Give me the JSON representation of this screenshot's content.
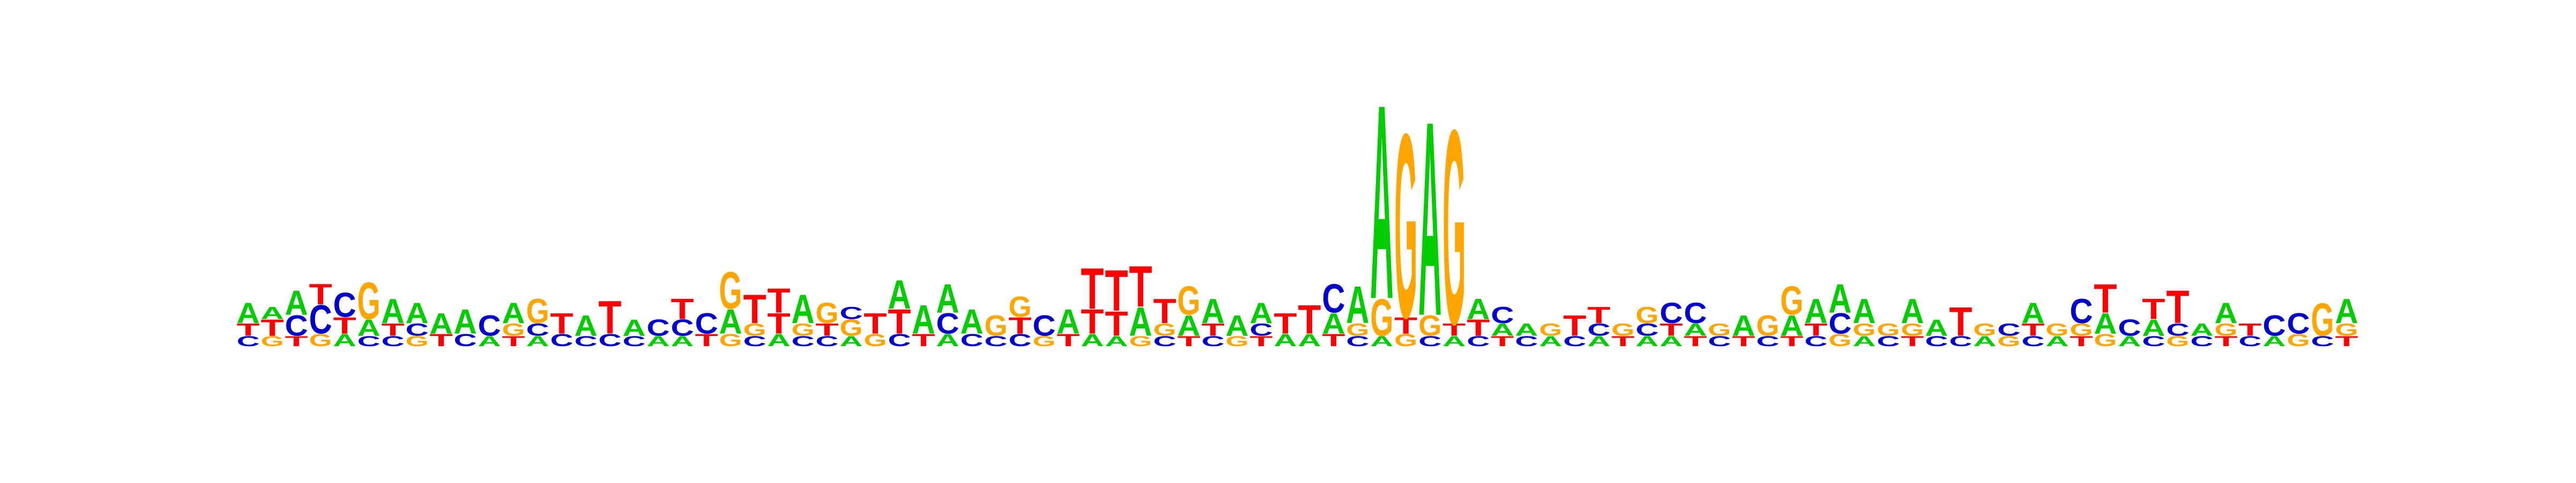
{
  "colors": {
    "A": "#00cc00",
    "C": "#0000cc",
    "G": "#ffa500",
    "T": "#ff0000"
  },
  "logo_columns": [
    [
      [
        "C",
        0.05
      ],
      [
        "T",
        0.06
      ],
      [
        "A",
        0.1
      ]
    ],
    [
      [
        "G",
        0.05
      ],
      [
        "T",
        0.08
      ],
      [
        "A",
        0.06
      ]
    ],
    [
      [
        "T",
        0.05
      ],
      [
        "C",
        0.1
      ],
      [
        "A",
        0.12
      ]
    ],
    [
      [
        "G",
        0.06
      ],
      [
        "C",
        0.14
      ],
      [
        "T",
        0.1
      ]
    ],
    [
      [
        "A",
        0.06
      ],
      [
        "T",
        0.08
      ],
      [
        "C",
        0.12
      ]
    ],
    [
      [
        "C",
        0.05
      ],
      [
        "A",
        0.08
      ],
      [
        "G",
        0.18
      ]
    ],
    [
      [
        "C",
        0.05
      ],
      [
        "T",
        0.06
      ],
      [
        "A",
        0.12
      ]
    ],
    [
      [
        "G",
        0.05
      ],
      [
        "C",
        0.06
      ],
      [
        "A",
        0.1
      ]
    ],
    [
      [
        "T",
        0.06
      ],
      [
        "A",
        0.1
      ]
    ],
    [
      [
        "C",
        0.06
      ],
      [
        "A",
        0.12
      ]
    ],
    [
      [
        "A",
        0.05
      ],
      [
        "C",
        0.1
      ]
    ],
    [
      [
        "T",
        0.05
      ],
      [
        "G",
        0.06
      ],
      [
        "A",
        0.1
      ]
    ],
    [
      [
        "A",
        0.05
      ],
      [
        "C",
        0.06
      ],
      [
        "G",
        0.12
      ]
    ],
    [
      [
        "C",
        0.06
      ],
      [
        "T",
        0.1
      ]
    ],
    [
      [
        "C",
        0.05
      ],
      [
        "A",
        0.1
      ]
    ],
    [
      [
        "C",
        0.06
      ],
      [
        "T",
        0.16
      ]
    ],
    [
      [
        "C",
        0.05
      ],
      [
        "A",
        0.08
      ]
    ],
    [
      [
        "A",
        0.05
      ],
      [
        "C",
        0.08
      ]
    ],
    [
      [
        "A",
        0.05
      ],
      [
        "C",
        0.08
      ],
      [
        "T",
        0.1
      ]
    ],
    [
      [
        "T",
        0.06
      ],
      [
        "C",
        0.1
      ]
    ],
    [
      [
        "G",
        0.06
      ],
      [
        "A",
        0.12
      ],
      [
        "G",
        0.18
      ]
    ],
    [
      [
        "C",
        0.05
      ],
      [
        "G",
        0.06
      ],
      [
        "T",
        0.14
      ]
    ],
    [
      [
        "A",
        0.06
      ],
      [
        "T",
        0.1
      ],
      [
        "T",
        0.12
      ]
    ],
    [
      [
        "C",
        0.05
      ],
      [
        "G",
        0.06
      ],
      [
        "A",
        0.14
      ]
    ],
    [
      [
        "C",
        0.05
      ],
      [
        "T",
        0.06
      ],
      [
        "G",
        0.1
      ]
    ],
    [
      [
        "A",
        0.05
      ],
      [
        "G",
        0.08
      ],
      [
        "C",
        0.06
      ]
    ],
    [
      [
        "G",
        0.06
      ],
      [
        "T",
        0.1
      ]
    ],
    [
      [
        "C",
        0.06
      ],
      [
        "T",
        0.12
      ],
      [
        "A",
        0.14
      ]
    ],
    [
      [
        "T",
        0.06
      ],
      [
        "A",
        0.14
      ]
    ],
    [
      [
        "A",
        0.06
      ],
      [
        "C",
        0.1
      ],
      [
        "A",
        0.14
      ]
    ],
    [
      [
        "C",
        0.06
      ],
      [
        "A",
        0.12
      ]
    ],
    [
      [
        "C",
        0.05
      ],
      [
        "G",
        0.1
      ]
    ],
    [
      [
        "C",
        0.06
      ],
      [
        "T",
        0.08
      ],
      [
        "G",
        0.1
      ]
    ],
    [
      [
        "G",
        0.05
      ],
      [
        "C",
        0.1
      ]
    ],
    [
      [
        "T",
        0.06
      ],
      [
        "A",
        0.12
      ]
    ],
    [
      [
        "A",
        0.06
      ],
      [
        "T",
        0.12
      ],
      [
        "T",
        0.2
      ]
    ],
    [
      [
        "A",
        0.05
      ],
      [
        "T",
        0.12
      ],
      [
        "T",
        0.2
      ]
    ],
    [
      [
        "G",
        0.05
      ],
      [
        "A",
        0.14
      ],
      [
        "T",
        0.2
      ]
    ],
    [
      [
        "C",
        0.05
      ],
      [
        "G",
        0.06
      ],
      [
        "T",
        0.12
      ]
    ],
    [
      [
        "T",
        0.05
      ],
      [
        "A",
        0.1
      ],
      [
        "G",
        0.14
      ]
    ],
    [
      [
        "C",
        0.05
      ],
      [
        "T",
        0.06
      ],
      [
        "A",
        0.12
      ]
    ],
    [
      [
        "G",
        0.05
      ],
      [
        "A",
        0.1
      ]
    ],
    [
      [
        "T",
        0.05
      ],
      [
        "C",
        0.06
      ],
      [
        "A",
        0.1
      ]
    ],
    [
      [
        "A",
        0.06
      ],
      [
        "T",
        0.1
      ]
    ],
    [
      [
        "A",
        0.06
      ],
      [
        "T",
        0.14
      ]
    ],
    [
      [
        "T",
        0.06
      ],
      [
        "A",
        0.1
      ],
      [
        "C",
        0.14
      ]
    ],
    [
      [
        "C",
        0.05
      ],
      [
        "G",
        0.06
      ],
      [
        "A",
        0.18
      ]
    ],
    [
      [
        "A",
        0.05
      ],
      [
        "G",
        0.18
      ],
      [
        "A",
        0.95
      ]
    ],
    [
      [
        "G",
        0.06
      ],
      [
        "T",
        0.08
      ],
      [
        "G",
        0.9
      ]
    ],
    [
      [
        "C",
        0.05
      ],
      [
        "G",
        0.1
      ],
      [
        "A",
        0.95
      ]
    ],
    [
      [
        "A",
        0.05
      ],
      [
        "T",
        0.06
      ],
      [
        "G",
        0.95
      ]
    ],
    [
      [
        "C",
        0.05
      ],
      [
        "T",
        0.08
      ],
      [
        "A",
        0.1
      ]
    ],
    [
      [
        "T",
        0.05
      ],
      [
        "A",
        0.06
      ],
      [
        "C",
        0.08
      ]
    ],
    [
      [
        "C",
        0.05
      ],
      [
        "A",
        0.06
      ]
    ],
    [
      [
        "A",
        0.05
      ],
      [
        "G",
        0.06
      ]
    ],
    [
      [
        "C",
        0.05
      ],
      [
        "T",
        0.1
      ]
    ],
    [
      [
        "A",
        0.05
      ],
      [
        "C",
        0.06
      ],
      [
        "T",
        0.08
      ]
    ],
    [
      [
        "T",
        0.05
      ],
      [
        "G",
        0.06
      ]
    ],
    [
      [
        "A",
        0.05
      ],
      [
        "C",
        0.06
      ],
      [
        "G",
        0.08
      ]
    ],
    [
      [
        "A",
        0.05
      ],
      [
        "T",
        0.06
      ],
      [
        "C",
        0.1
      ]
    ],
    [
      [
        "T",
        0.05
      ],
      [
        "A",
        0.06
      ],
      [
        "C",
        0.1
      ]
    ],
    [
      [
        "C",
        0.05
      ],
      [
        "G",
        0.06
      ]
    ],
    [
      [
        "T",
        0.05
      ],
      [
        "A",
        0.1
      ]
    ],
    [
      [
        "C",
        0.05
      ],
      [
        "G",
        0.1
      ]
    ],
    [
      [
        "T",
        0.05
      ],
      [
        "A",
        0.1
      ],
      [
        "G",
        0.14
      ]
    ],
    [
      [
        "C",
        0.05
      ],
      [
        "T",
        0.06
      ],
      [
        "A",
        0.12
      ]
    ],
    [
      [
        "G",
        0.06
      ],
      [
        "C",
        0.1
      ],
      [
        "A",
        0.14
      ]
    ],
    [
      [
        "A",
        0.05
      ],
      [
        "G",
        0.06
      ],
      [
        "A",
        0.12
      ]
    ],
    [
      [
        "C",
        0.05
      ],
      [
        "G",
        0.06
      ]
    ],
    [
      [
        "T",
        0.05
      ],
      [
        "G",
        0.06
      ],
      [
        "A",
        0.12
      ]
    ],
    [
      [
        "C",
        0.05
      ],
      [
        "A",
        0.08
      ]
    ],
    [
      [
        "C",
        0.05
      ],
      [
        "T",
        0.14
      ]
    ],
    [
      [
        "A",
        0.05
      ],
      [
        "G",
        0.06
      ]
    ],
    [
      [
        "G",
        0.05
      ],
      [
        "C",
        0.06
      ]
    ],
    [
      [
        "C",
        0.05
      ],
      [
        "T",
        0.06
      ],
      [
        "A",
        0.1
      ]
    ],
    [
      [
        "A",
        0.05
      ],
      [
        "G",
        0.06
      ]
    ],
    [
      [
        "T",
        0.05
      ],
      [
        "G",
        0.06
      ],
      [
        "C",
        0.12
      ]
    ],
    [
      [
        "G",
        0.06
      ],
      [
        "A",
        0.1
      ],
      [
        "T",
        0.14
      ]
    ],
    [
      [
        "A",
        0.05
      ],
      [
        "C",
        0.08
      ]
    ],
    [
      [
        "C",
        0.05
      ],
      [
        "A",
        0.08
      ],
      [
        "T",
        0.1
      ]
    ],
    [
      [
        "G",
        0.05
      ],
      [
        "C",
        0.06
      ],
      [
        "T",
        0.16
      ]
    ],
    [
      [
        "C",
        0.05
      ],
      [
        "A",
        0.06
      ]
    ],
    [
      [
        "T",
        0.05
      ],
      [
        "G",
        0.06
      ],
      [
        "A",
        0.1
      ]
    ],
    [
      [
        "C",
        0.05
      ],
      [
        "T",
        0.06
      ]
    ],
    [
      [
        "A",
        0.05
      ],
      [
        "C",
        0.1
      ]
    ],
    [
      [
        "G",
        0.06
      ],
      [
        "C",
        0.1
      ]
    ],
    [
      [
        "C",
        0.05
      ],
      [
        "G",
        0.16
      ]
    ],
    [
      [
        "T",
        0.05
      ],
      [
        "G",
        0.06
      ],
      [
        "A",
        0.12
      ]
    ]
  ]
}
